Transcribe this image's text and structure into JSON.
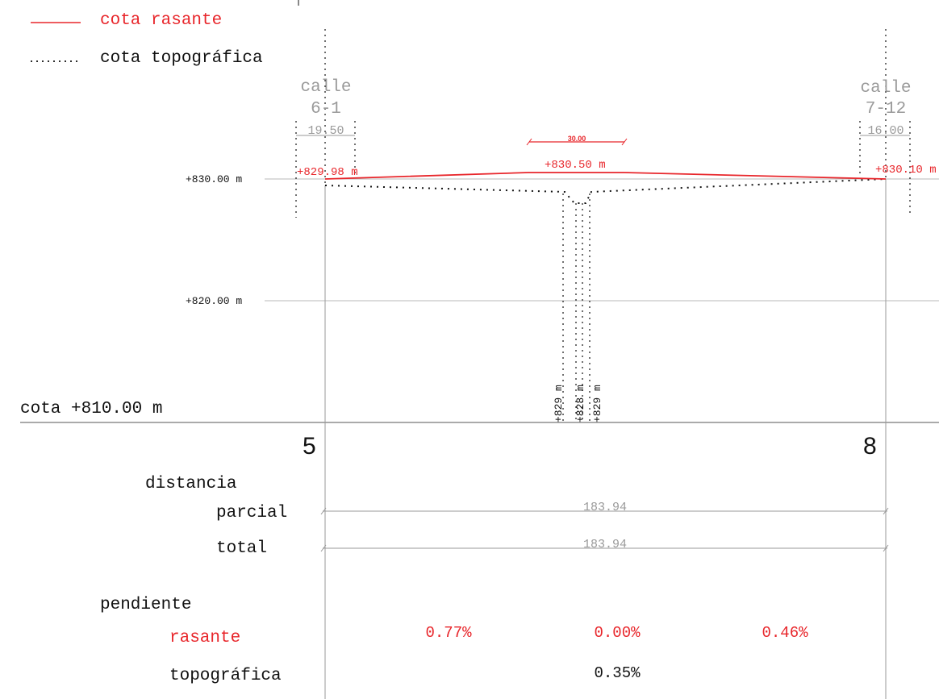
{
  "legend": {
    "rasante_label": "cota rasante",
    "topografica_label": "cota topográfica"
  },
  "streets": [
    {
      "label_line1": "calle",
      "label_line2": "6-1",
      "width": "19.50"
    },
    {
      "label_line1": "calle",
      "label_line2": "7-12",
      "width": "16.00"
    }
  ],
  "dimension_top": "30.00",
  "elevations": {
    "grid_830": "+830.00 m",
    "grid_820": "+820.00 m",
    "base": "cota +810.00 m"
  },
  "rasante_points": {
    "start": "+829.98 m",
    "mid": "+830.50 m",
    "end": "+830.10 m"
  },
  "topo_points": [
    "+829 m",
    "+828 m",
    "+829 m"
  ],
  "stations": {
    "start": "5",
    "end": "8"
  },
  "table": {
    "distancia": "distancia",
    "parcial": "parcial",
    "total": "total",
    "parcial_value": "183.94",
    "total_value": "183.94",
    "pendiente": "pendiente",
    "rasante": "rasante",
    "topografica": "topográfica",
    "slopes_rasante": [
      "0.77%",
      "0.00%",
      "0.46%"
    ],
    "slope_topografica": "0.35%"
  },
  "colors": {
    "rasante": "#e8262b",
    "topografica": "#111111",
    "grid": "#b8b8b8",
    "annotation": "#9a9a9a"
  }
}
